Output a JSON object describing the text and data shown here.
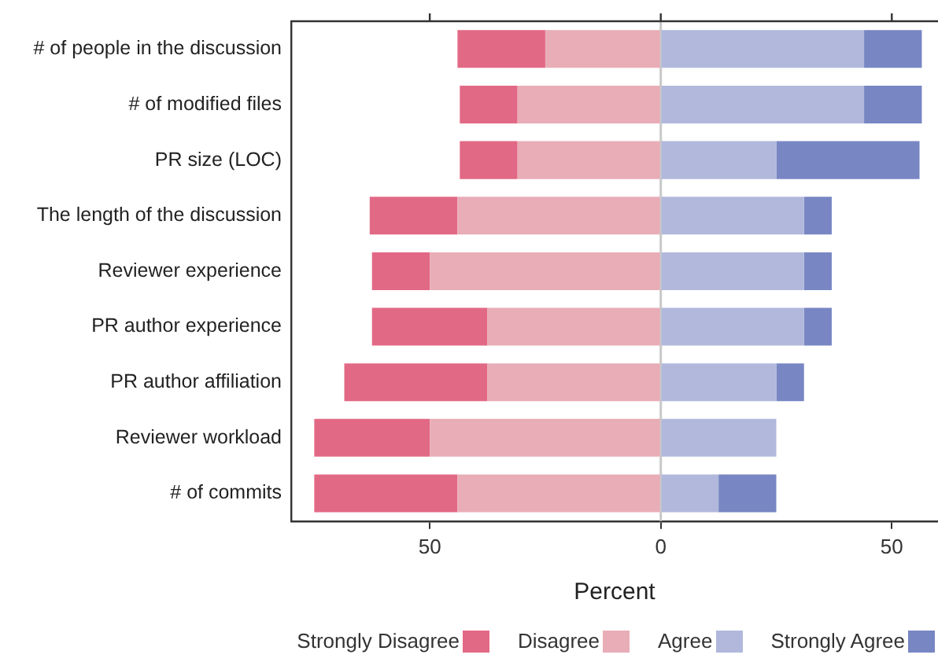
{
  "chart_data": {
    "type": "bar",
    "orientation": "horizontal",
    "stacked": true,
    "xlabel": "Percent",
    "categories": [
      "# of people in the discussion",
      "# of modified files",
      "PR size (LOC)",
      "The length of the discussion",
      "Reviewer experience",
      "PR author experience",
      "PR author affiliation",
      "Reviewer workload",
      "# of commits"
    ],
    "series": [
      {
        "name": "Disagree",
        "color": "#e8adb7",
        "values": [
          -25,
          -31,
          -31,
          -44,
          -50,
          -37.5,
          -37.5,
          -50,
          -44
        ]
      },
      {
        "name": "Strongly Disagree",
        "color": "#e26985",
        "values": [
          -19,
          -12.5,
          -12.5,
          -19,
          -12.5,
          -25,
          -31,
          -25,
          -31
        ]
      },
      {
        "name": "Agree",
        "color": "#b1b8dc",
        "values": [
          44,
          44,
          25,
          31,
          31,
          31,
          25,
          25,
          12.5
        ]
      },
      {
        "name": "Strongly Agree",
        "color": "#7886c3",
        "values": [
          12.5,
          12.5,
          31,
          6,
          6,
          6,
          6,
          0,
          12.5
        ]
      }
    ],
    "xlim": [
      -80,
      60
    ],
    "xticks": [
      {
        "value": -50,
        "label": "50"
      },
      0,
      50
    ],
    "ref_lines": [
      {
        "axis": "x",
        "value": 0,
        "color": "#c8c8c8"
      }
    ],
    "grid": false,
    "legend": "bottom"
  }
}
